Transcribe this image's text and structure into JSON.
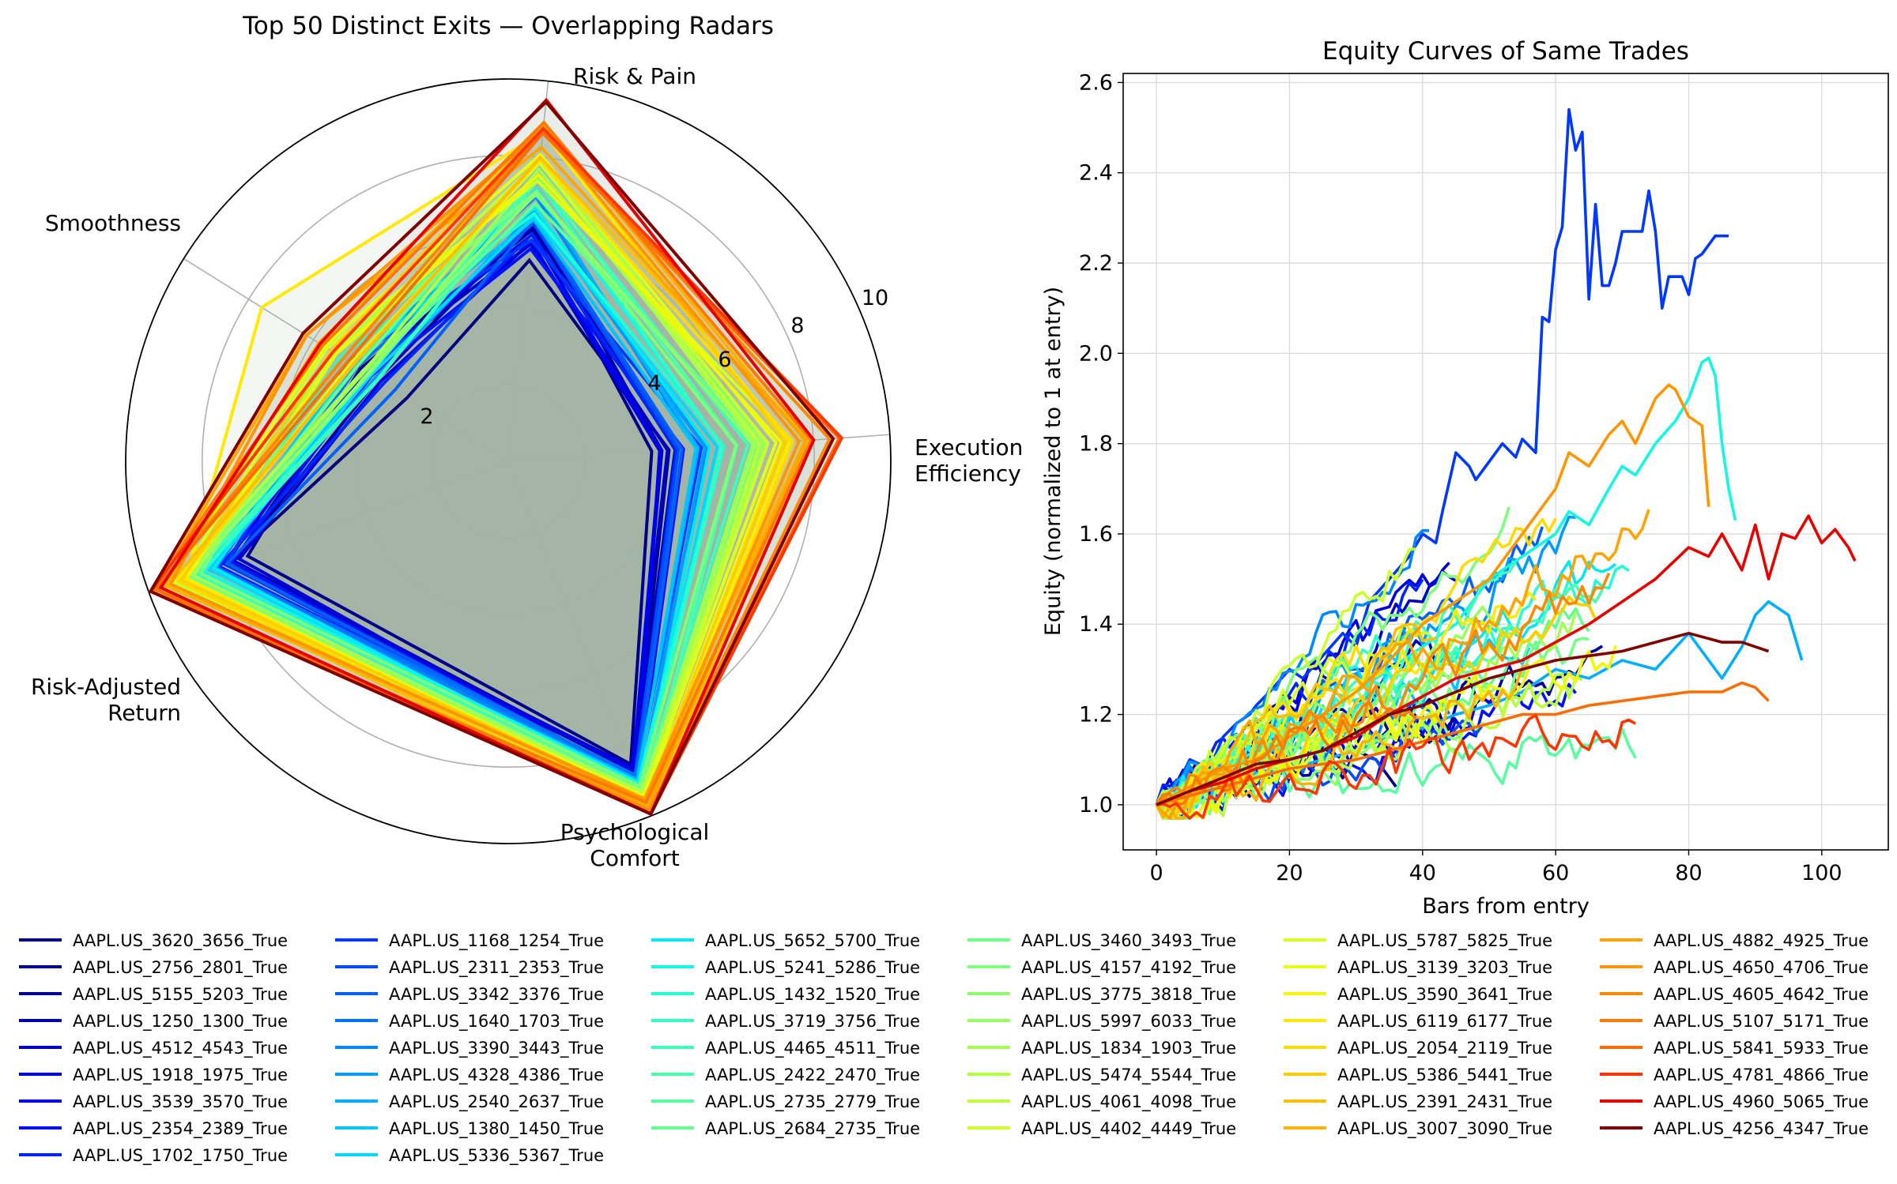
{
  "radar": {
    "type": "radar",
    "title": "Top 50 Distinct Exits — Overlapping Radars",
    "axes": [
      {
        "label": [
          "Risk & Pain"
        ]
      },
      {
        "label": [
          "Execution",
          "Efficiency"
        ]
      },
      {
        "label": [
          "Psychological",
          "Comfort"
        ]
      },
      {
        "label": [
          "Risk-Adjusted",
          "Return"
        ]
      },
      {
        "label": [
          "Smoothness"
        ]
      }
    ],
    "rmax": 10,
    "rticks": [
      "2",
      "4",
      "6",
      "8",
      "10"
    ],
    "rtick_values": [
      2,
      4,
      6,
      8,
      10
    ],
    "fill_color": "#a7b8a4"
  },
  "chart_data": {
    "type": "line",
    "title": "Equity Curves of Same Trades",
    "xlabel": "Bars from entry",
    "ylabel": "Equity (normalized to 1 at entry)",
    "xlim": [
      -5,
      110
    ],
    "ylim": [
      0.9,
      2.62
    ],
    "xticks": [
      0,
      20,
      40,
      60,
      80,
      100
    ],
    "xtick_labels": [
      "0",
      "20",
      "40",
      "60",
      "80",
      "100"
    ],
    "yticks": [
      1.0,
      1.2,
      1.4,
      1.6,
      1.8,
      2.0,
      2.2,
      2.4,
      2.6
    ],
    "ytick_labels": [
      "1.0",
      "1.2",
      "1.4",
      "1.6",
      "1.8",
      "2.0",
      "2.2",
      "2.4",
      "2.6"
    ],
    "grid": true,
    "highlighted": [
      {
        "series": "AAPL.US_1168_1254_True",
        "x": [
          0,
          3,
          5,
          8,
          10,
          12,
          14,
          15,
          17,
          20,
          22,
          25,
          28,
          30,
          32,
          35,
          38,
          40,
          42,
          43,
          45,
          47,
          48,
          50,
          52,
          54,
          55,
          57,
          58,
          59,
          60,
          61,
          62,
          63,
          64,
          65,
          66,
          67,
          68,
          69,
          70,
          71,
          72,
          73,
          74,
          75,
          76,
          77,
          78,
          79,
          80,
          81,
          82,
          84,
          85,
          86
        ],
        "y": [
          1.0,
          1.04,
          1.1,
          1.08,
          1.15,
          1.18,
          1.2,
          1.22,
          1.25,
          1.3,
          1.28,
          1.33,
          1.38,
          1.35,
          1.45,
          1.5,
          1.55,
          1.6,
          1.58,
          1.65,
          1.78,
          1.75,
          1.72,
          1.76,
          1.8,
          1.77,
          1.81,
          1.78,
          2.08,
          2.07,
          2.23,
          2.28,
          2.54,
          2.45,
          2.49,
          2.12,
          2.33,
          2.15,
          2.15,
          2.2,
          2.27,
          2.27,
          2.27,
          2.27,
          2.36,
          2.27,
          2.1,
          2.17,
          2.17,
          2.17,
          2.13,
          2.21,
          2.22,
          2.26,
          2.26,
          2.26
        ]
      },
      {
        "series": "AAPL.US_5241_5286_True",
        "x": [
          0,
          5,
          10,
          15,
          20,
          25,
          30,
          35,
          40,
          45,
          50,
          55,
          60,
          62,
          65,
          68,
          70,
          72,
          75,
          78,
          80,
          81,
          82,
          83,
          84,
          85,
          86,
          87
        ],
        "y": [
          1.0,
          1.05,
          1.08,
          1.12,
          1.15,
          1.2,
          1.25,
          1.3,
          1.35,
          1.4,
          1.5,
          1.55,
          1.6,
          1.65,
          1.62,
          1.7,
          1.75,
          1.73,
          1.8,
          1.85,
          1.9,
          1.94,
          1.98,
          1.99,
          1.95,
          1.8,
          1.7,
          1.63
        ]
      },
      {
        "series": "AAPL.US_4650_4706_True",
        "x": [
          0,
          5,
          10,
          15,
          20,
          25,
          30,
          35,
          40,
          45,
          50,
          55,
          60,
          62,
          65,
          68,
          70,
          72,
          75,
          77,
          78,
          80,
          82,
          83
        ],
        "y": [
          1.0,
          1.04,
          1.08,
          1.1,
          1.15,
          1.2,
          1.25,
          1.32,
          1.4,
          1.45,
          1.5,
          1.6,
          1.7,
          1.78,
          1.75,
          1.82,
          1.85,
          1.8,
          1.9,
          1.93,
          1.92,
          1.86,
          1.84,
          1.66
        ]
      },
      {
        "series": "AAPL.US_4960_5065_True",
        "x": [
          0,
          5,
          10,
          15,
          20,
          25,
          30,
          35,
          40,
          45,
          50,
          55,
          60,
          65,
          70,
          75,
          80,
          83,
          85,
          88,
          90,
          92,
          94,
          96,
          98,
          100,
          102,
          104,
          105
        ],
        "y": [
          1.0,
          1.03,
          1.05,
          1.08,
          1.1,
          1.12,
          1.15,
          1.2,
          1.24,
          1.28,
          1.3,
          1.32,
          1.36,
          1.4,
          1.45,
          1.5,
          1.57,
          1.55,
          1.6,
          1.52,
          1.62,
          1.5,
          1.6,
          1.59,
          1.64,
          1.58,
          1.61,
          1.57,
          1.54
        ]
      },
      {
        "series": "AAPL.US_4256_4347_True",
        "x": [
          0,
          5,
          10,
          15,
          20,
          25,
          30,
          35,
          40,
          45,
          50,
          55,
          60,
          65,
          70,
          75,
          80,
          85,
          88,
          90,
          92
        ],
        "y": [
          1.0,
          1.03,
          1.06,
          1.09,
          1.1,
          1.12,
          1.16,
          1.2,
          1.22,
          1.25,
          1.28,
          1.3,
          1.32,
          1.33,
          1.34,
          1.36,
          1.38,
          1.36,
          1.36,
          1.35,
          1.34
        ]
      },
      {
        "series": "AAPL.US_5841_5933_True",
        "x": [
          0,
          5,
          10,
          15,
          20,
          25,
          30,
          35,
          40,
          45,
          50,
          55,
          60,
          65,
          70,
          75,
          80,
          85,
          88,
          90,
          92
        ],
        "y": [
          1.0,
          1.02,
          1.04,
          1.06,
          1.08,
          1.09,
          1.1,
          1.12,
          1.14,
          1.16,
          1.18,
          1.2,
          1.2,
          1.22,
          1.23,
          1.24,
          1.25,
          1.25,
          1.27,
          1.26,
          1.23
        ]
      },
      {
        "series": "AAPL.US_2540_2637_True",
        "x": [
          0,
          5,
          10,
          15,
          20,
          25,
          30,
          35,
          40,
          45,
          50,
          55,
          60,
          65,
          70,
          75,
          80,
          85,
          88,
          90,
          92,
          95,
          97
        ],
        "y": [
          1.0,
          1.02,
          1.05,
          1.07,
          1.08,
          1.1,
          1.12,
          1.15,
          1.17,
          1.2,
          1.22,
          1.25,
          1.3,
          1.28,
          1.32,
          1.3,
          1.38,
          1.28,
          1.35,
          1.42,
          1.45,
          1.42,
          1.32
        ]
      },
      {
        "series": "AAPL.US_3620_3656_True",
        "x": [
          0,
          5,
          10,
          15,
          20,
          25,
          28,
          30,
          33,
          35,
          36
        ],
        "y": [
          1.0,
          1.03,
          1.05,
          1.08,
          1.1,
          1.12,
          1.15,
          1.12,
          1.1,
          1.06,
          1.04
        ]
      }
    ],
    "legend": {
      "columns": 6,
      "entries": [
        {
          "label": "AAPL.US_3620_3656_True",
          "color": "#000080"
        },
        {
          "label": "AAPL.US_2756_2801_True",
          "color": "#00008d"
        },
        {
          "label": "AAPL.US_5155_5203_True",
          "color": "#00009f"
        },
        {
          "label": "AAPL.US_1250_1300_True",
          "color": "#0000b2"
        },
        {
          "label": "AAPL.US_4512_4543_True",
          "color": "#0000c8"
        },
        {
          "label": "AAPL.US_1918_1975_True",
          "color": "#0000dd"
        },
        {
          "label": "AAPL.US_3539_3570_True",
          "color": "#0000f1"
        },
        {
          "label": "AAPL.US_2354_2389_True",
          "color": "#0010ff"
        },
        {
          "label": "AAPL.US_1702_1750_True",
          "color": "#0024ff"
        },
        {
          "label": "AAPL.US_1168_1254_True",
          "color": "#0038ff"
        },
        {
          "label": "AAPL.US_2311_2353_True",
          "color": "#004cff"
        },
        {
          "label": "AAPL.US_3342_3376_True",
          "color": "#0060ff"
        },
        {
          "label": "AAPL.US_1640_1703_True",
          "color": "#0074ff"
        },
        {
          "label": "AAPL.US_3390_3443_True",
          "color": "#0088ff"
        },
        {
          "label": "AAPL.US_4328_4386_True",
          "color": "#009cff"
        },
        {
          "label": "AAPL.US_2540_2637_True",
          "color": "#00b0ff"
        },
        {
          "label": "AAPL.US_1380_1450_True",
          "color": "#00c4ff"
        },
        {
          "label": "AAPL.US_5336_5367_True",
          "color": "#00d8ff"
        },
        {
          "label": "AAPL.US_5652_5700_True",
          "color": "#02e8f4"
        },
        {
          "label": "AAPL.US_5241_5286_True",
          "color": "#13f8e3"
        },
        {
          "label": "AAPL.US_1432_1520_True",
          "color": "#23ffd4"
        },
        {
          "label": "AAPL.US_3719_3756_True",
          "color": "#30ffc7"
        },
        {
          "label": "AAPL.US_4465_4511_True",
          "color": "#3dffba"
        },
        {
          "label": "AAPL.US_2422_2470_True",
          "color": "#4affad"
        },
        {
          "label": "AAPL.US_2735_2779_True",
          "color": "#57ffa0"
        },
        {
          "label": "AAPL.US_2684_2735_True",
          "color": "#64ff93"
        },
        {
          "label": "AAPL.US_3460_3493_True",
          "color": "#71ff86"
        },
        {
          "label": "AAPL.US_4157_4192_True",
          "color": "#7eff79"
        },
        {
          "label": "AAPL.US_3775_3818_True",
          "color": "#8bff6c"
        },
        {
          "label": "AAPL.US_5997_6033_True",
          "color": "#98ff5f"
        },
        {
          "label": "AAPL.US_1834_1903_True",
          "color": "#a5ff52"
        },
        {
          "label": "AAPL.US_5474_5544_True",
          "color": "#b2ff45"
        },
        {
          "label": "AAPL.US_4061_4098_True",
          "color": "#bfff38"
        },
        {
          "label": "AAPL.US_4402_4449_True",
          "color": "#ccff2b"
        },
        {
          "label": "AAPL.US_5787_5825_True",
          "color": "#d9ff1e"
        },
        {
          "label": "AAPL.US_3139_3203_True",
          "color": "#e6ff11"
        },
        {
          "label": "AAPL.US_3590_3641_True",
          "color": "#f3f800"
        },
        {
          "label": "AAPL.US_6119_6177_True",
          "color": "#ffea00"
        },
        {
          "label": "AAPL.US_2054_2119_True",
          "color": "#ffdc00"
        },
        {
          "label": "AAPL.US_5386_5441_True",
          "color": "#ffce00"
        },
        {
          "label": "AAPL.US_2391_2431_True",
          "color": "#ffc000"
        },
        {
          "label": "AAPL.US_3007_3090_True",
          "color": "#ffb200"
        },
        {
          "label": "AAPL.US_4882_4925_True",
          "color": "#ffa400"
        },
        {
          "label": "AAPL.US_4650_4706_True",
          "color": "#ff9600"
        },
        {
          "label": "AAPL.US_4605_4642_True",
          "color": "#ff8800"
        },
        {
          "label": "AAPL.US_5107_5171_True",
          "color": "#ff7a00"
        },
        {
          "label": "AAPL.US_5841_5933_True",
          "color": "#ff6c00"
        },
        {
          "label": "AAPL.US_4781_4866_True",
          "color": "#ff3600"
        },
        {
          "label": "AAPL.US_4960_5065_True",
          "color": "#e80000"
        },
        {
          "label": "AAPL.US_4256_4347_True",
          "color": "#800000"
        }
      ]
    }
  }
}
